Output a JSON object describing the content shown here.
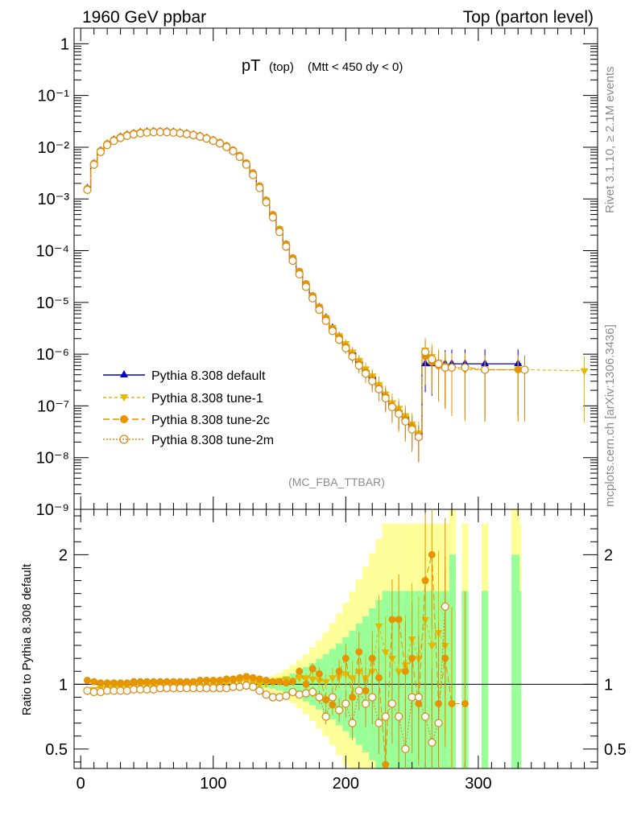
{
  "header": {
    "left": "1960 GeV ppbar",
    "right": "Top (parton level)"
  },
  "plot_title": {
    "main": "pT",
    "sub1": "(top)",
    "sub2": "(Mtt < 450 dy < 0)"
  },
  "watermark": "(MC_FBA_TTBAR)",
  "side_labels": {
    "rivet": "Rivet 3.1.10, ≥ 2.1M events",
    "mcplots": "mcplots.cern.ch [arXiv:1306.3436]"
  },
  "ratio_ylabel": "Ratio to Pythia 8.308 default",
  "colors": {
    "default": "#0000cc",
    "tune1": "#e6b800",
    "tune2c": "#e69500",
    "tune2m": "#d98c1a",
    "band_green": "#99ff99",
    "band_yellow": "#ffff99"
  },
  "chart_data": [
    {
      "type": "line",
      "panel": "main",
      "yscale": "log",
      "xlim": [
        -5,
        390
      ],
      "ylim": [
        1e-09,
        2
      ],
      "y_tick_labels": [
        "1",
        "10⁻¹",
        "10⁻²",
        "10⁻³",
        "10⁻⁴",
        "10⁻⁵",
        "10⁻⁶",
        "10⁻⁷",
        "10⁻⁸",
        "10⁻⁹"
      ],
      "legend_position": "lower-left",
      "series": [
        {
          "name": "Pythia 8.308 default",
          "x": [
            5,
            10,
            15,
            20,
            25,
            30,
            35,
            40,
            45,
            50,
            55,
            60,
            65,
            70,
            75,
            80,
            85,
            90,
            95,
            100,
            105,
            110,
            115,
            120,
            125,
            130,
            135,
            140,
            145,
            150,
            155,
            160,
            165,
            170,
            175,
            180,
            185,
            190,
            195,
            200,
            205,
            210,
            215,
            220,
            225,
            230,
            235,
            240,
            245,
            250,
            255,
            260,
            265,
            270,
            275,
            280,
            290,
            305,
            330
          ],
          "y": [
            0.0016,
            0.0048,
            0.0085,
            0.0115,
            0.0138,
            0.0157,
            0.0172,
            0.0183,
            0.0192,
            0.0197,
            0.02,
            0.02,
            0.0199,
            0.0195,
            0.0189,
            0.0182,
            0.0173,
            0.0162,
            0.0149,
            0.0135,
            0.012,
            0.0103,
            0.0085,
            0.0066,
            0.0047,
            0.003,
            0.0017,
            0.00092,
            0.00048,
            0.00025,
            0.00013,
            7e-05,
            3.8e-05,
            2.2e-05,
            1.3e-05,
            8e-06,
            5e-06,
            3.2e-06,
            2.2e-06,
            1.5e-06,
            1.05e-06,
            7e-07,
            4.8e-07,
            3.5e-07,
            2.4e-07,
            1.5e-07,
            1e-07,
            8e-08,
            6e-08,
            4e-08,
            2.5e-08,
            6.5e-07,
            6.5e-07,
            6.5e-07,
            6.5e-07,
            6.5e-07,
            6.5e-07,
            6.5e-07,
            6.5e-07
          ]
        },
        {
          "name": "Pythia 8.308 tune-1",
          "x": [
            5,
            10,
            15,
            20,
            25,
            30,
            35,
            40,
            45,
            50,
            55,
            60,
            65,
            70,
            75,
            80,
            85,
            90,
            95,
            100,
            105,
            110,
            115,
            120,
            125,
            130,
            135,
            140,
            145,
            150,
            155,
            160,
            165,
            170,
            175,
            180,
            185,
            190,
            195,
            200,
            205,
            210,
            215,
            220,
            225,
            230,
            235,
            240,
            245,
            250,
            255,
            260,
            265,
            270,
            275,
            280,
            290,
            305,
            330,
            380
          ],
          "y": [
            0.0015,
            0.0046,
            0.0083,
            0.0112,
            0.0136,
            0.0155,
            0.017,
            0.0181,
            0.019,
            0.0195,
            0.0198,
            0.0199,
            0.0198,
            0.0194,
            0.0188,
            0.0181,
            0.0172,
            0.0161,
            0.0148,
            0.0134,
            0.012,
            0.0104,
            0.0086,
            0.0067,
            0.0048,
            0.003,
            0.0017,
            0.00093,
            0.00049,
            0.00026,
            0.000135,
            7.2e-05,
            4e-05,
            2.3e-05,
            1.35e-05,
            8.2e-06,
            5.1e-06,
            3.3e-06,
            2.3e-06,
            1.6e-06,
            1.1e-06,
            7.5e-07,
            5.2e-07,
            3.8e-07,
            2.6e-07,
            1.7e-07,
            1.15e-07,
            9e-08,
            6.5e-08,
            4.5e-08,
            3e-08,
            1.2e-06,
            9e-07,
            7e-07,
            6e-07,
            5.5e-07,
            5e-07,
            5e-07,
            5e-07,
            4.8e-07
          ]
        },
        {
          "name": "Pythia 8.308 tune-2c",
          "x": [
            5,
            10,
            15,
            20,
            25,
            30,
            35,
            40,
            45,
            50,
            55,
            60,
            65,
            70,
            75,
            80,
            85,
            90,
            95,
            100,
            105,
            110,
            115,
            120,
            125,
            130,
            135,
            140,
            145,
            150,
            155,
            160,
            165,
            170,
            175,
            180,
            185,
            190,
            195,
            200,
            205,
            210,
            215,
            220,
            225,
            230,
            235,
            240,
            245,
            250,
            255,
            260,
            265,
            270,
            275,
            280,
            290,
            305,
            330
          ],
          "y": [
            0.0016,
            0.0049,
            0.0086,
            0.0117,
            0.014,
            0.0159,
            0.0175,
            0.0186,
            0.0195,
            0.02,
            0.0203,
            0.0204,
            0.0203,
            0.0199,
            0.0193,
            0.0186,
            0.0177,
            0.0166,
            0.0153,
            0.0139,
            0.0124,
            0.0107,
            0.0089,
            0.007,
            0.005,
            0.0032,
            0.0018,
            0.00095,
            0.0005,
            0.00026,
            0.000135,
            7.3e-05,
            4e-05,
            2.3e-05,
            1.35e-05,
            8.2e-06,
            5e-06,
            3.1e-06,
            2.1e-06,
            1.4e-06,
            9.5e-07,
            6.5e-07,
            4.5e-07,
            3.2e-07,
            2.2e-07,
            1.5e-07,
            1e-07,
            7.5e-08,
            5.5e-08,
            4e-08,
            2.5e-08,
            9e-07,
            7e-07,
            6e-07,
            5.5e-07,
            5.5e-07,
            5.5e-07,
            5e-07,
            5e-07
          ]
        },
        {
          "name": "Pythia 8.308 tune-2m",
          "x": [
            5,
            10,
            15,
            20,
            25,
            30,
            35,
            40,
            45,
            50,
            55,
            60,
            65,
            70,
            75,
            80,
            85,
            90,
            95,
            100,
            105,
            110,
            115,
            120,
            125,
            130,
            135,
            140,
            145,
            150,
            155,
            160,
            165,
            170,
            175,
            180,
            185,
            190,
            195,
            200,
            205,
            210,
            215,
            220,
            225,
            230,
            235,
            240,
            245,
            250,
            255,
            260,
            265,
            270,
            275,
            280,
            290,
            305,
            335
          ],
          "y": [
            0.0015,
            0.0046,
            0.0081,
            0.011,
            0.0133,
            0.0151,
            0.0166,
            0.0177,
            0.0186,
            0.0192,
            0.0195,
            0.0196,
            0.0195,
            0.0191,
            0.0186,
            0.0179,
            0.0171,
            0.016,
            0.0147,
            0.0133,
            0.0118,
            0.0101,
            0.0084,
            0.0065,
            0.0046,
            0.0029,
            0.00163,
            0.00086,
            0.00044,
            0.00023,
            0.00012,
            6.4e-05,
            3.5e-05,
            2e-05,
            1.2e-05,
            7.2e-06,
            4.4e-06,
            2.8e-06,
            1.9e-06,
            1.3e-06,
            9e-07,
            6e-07,
            4.2e-07,
            3e-07,
            2.1e-07,
            1.4e-07,
            9.5e-08,
            7e-08,
            5e-08,
            3.5e-08,
            2.5e-08,
            1.1e-06,
            8e-07,
            6.5e-07,
            5.5e-07,
            5.5e-07,
            5.5e-07,
            5e-07,
            5e-07
          ]
        }
      ]
    },
    {
      "type": "line",
      "panel": "ratio",
      "ylabel": "Ratio to Pythia 8.308 default",
      "xlim": [
        -5,
        390
      ],
      "ylim": [
        0.35,
        2.35
      ],
      "x_tick_labels": [
        "0",
        "100",
        "200",
        "300"
      ],
      "y_tick_labels": [
        "0.5",
        "1",
        "2"
      ],
      "reference_line": 1,
      "series": [
        {
          "name": "Pythia 8.308 tune-1",
          "x": [
            5,
            10,
            15,
            20,
            25,
            30,
            35,
            40,
            45,
            50,
            55,
            60,
            65,
            70,
            75,
            80,
            85,
            90,
            95,
            100,
            105,
            110,
            115,
            120,
            125,
            130,
            135,
            140,
            145,
            150,
            155,
            160,
            165,
            170,
            175,
            180,
            185,
            190,
            195,
            200,
            205,
            210,
            215,
            220,
            225,
            230,
            235,
            240,
            245,
            250,
            255,
            260,
            265,
            270,
            275
          ],
          "y": [
            0.95,
            0.96,
            0.97,
            0.97,
            0.98,
            0.98,
            0.98,
            0.98,
            0.99,
            0.99,
            0.99,
            0.99,
            0.99,
            0.99,
            0.99,
            0.99,
            0.99,
            0.99,
            0.99,
            0.99,
            1.0,
            1.01,
            1.01,
            1.02,
            1.02,
            1.01,
            1.0,
            1.01,
            1.02,
            1.03,
            1.04,
            1.03,
            1.05,
            1.05,
            1.04,
            1.03,
            1.02,
            1.05,
            1.06,
            1.08,
            1.05,
            1.1,
            1.05,
            1.1,
            1.45,
            1.25,
            1.2,
            1.1,
            1.15,
            1.35,
            1.2,
            1.5,
            1.3,
            1.4,
            1.3
          ]
        },
        {
          "name": "Pythia 8.308 tune-2c",
          "x": [
            5,
            10,
            15,
            20,
            25,
            30,
            35,
            40,
            45,
            50,
            55,
            60,
            65,
            70,
            75,
            80,
            85,
            90,
            95,
            100,
            105,
            110,
            115,
            120,
            125,
            130,
            135,
            140,
            145,
            150,
            155,
            160,
            165,
            170,
            175,
            180,
            185,
            190,
            195,
            200,
            205,
            210,
            215,
            220,
            225,
            230,
            235,
            240,
            245,
            250,
            255,
            260,
            265,
            270,
            275,
            280,
            290
          ],
          "y": [
            1.03,
            1.02,
            1.01,
            1.01,
            1.01,
            1.01,
            1.01,
            1.02,
            1.02,
            1.02,
            1.02,
            1.02,
            1.02,
            1.02,
            1.02,
            1.02,
            1.02,
            1.03,
            1.03,
            1.03,
            1.03,
            1.04,
            1.04,
            1.05,
            1.06,
            1.05,
            1.04,
            1.03,
            1.02,
            1.02,
            1.01,
            1.02,
            1.1,
            1.0,
            1.12,
            1.08,
            0.88,
            0.84,
            1.1,
            1.2,
            0.9,
            1.25,
            0.95,
            1.2,
            1.05,
            0.38,
            1.5,
            1.5,
            1.1,
            1.2,
            0.85,
            1.8,
            2.0,
            0.85,
            1.2,
            0.85,
            0.85
          ]
        },
        {
          "name": "Pythia 8.308 tune-2m",
          "x": [
            5,
            10,
            15,
            20,
            25,
            30,
            35,
            40,
            45,
            50,
            55,
            60,
            65,
            70,
            75,
            80,
            85,
            90,
            95,
            100,
            105,
            110,
            115,
            120,
            125,
            130,
            135,
            140,
            145,
            150,
            155,
            160,
            165,
            170,
            175,
            180,
            185,
            190,
            195,
            200,
            205,
            210,
            215,
            220,
            225,
            230,
            235,
            240,
            245,
            250,
            255,
            260,
            265,
            270,
            275
          ],
          "y": [
            0.95,
            0.94,
            0.94,
            0.95,
            0.95,
            0.95,
            0.95,
            0.96,
            0.96,
            0.96,
            0.96,
            0.97,
            0.97,
            0.97,
            0.97,
            0.97,
            0.97,
            0.97,
            0.97,
            0.97,
            0.97,
            0.97,
            0.98,
            0.98,
            0.99,
            0.98,
            0.95,
            0.92,
            0.9,
            0.9,
            0.91,
            0.94,
            0.92,
            0.93,
            0.94,
            0.9,
            0.75,
            0.9,
            0.8,
            0.85,
            0.7,
            0.95,
            0.85,
            0.9,
            0.7,
            0.75,
            0.85,
            0.75,
            0.5,
            0.9,
            0.9,
            0.75,
            0.55,
            0.7,
            1.6
          ]
        }
      ]
    }
  ]
}
